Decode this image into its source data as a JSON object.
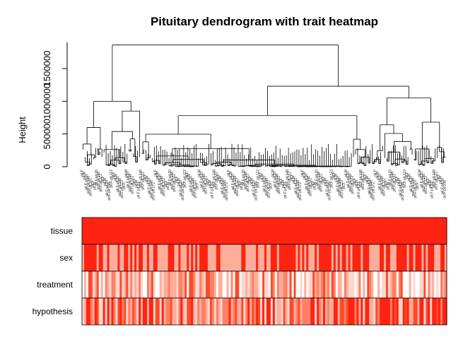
{
  "chart_data": {
    "type": "dendrogram-heatmap",
    "title": "Pituitary dendrogram with trait heatmap",
    "ylabel": "Height",
    "yticks": [
      "0",
      "500000",
      "1000000",
      "1500000"
    ],
    "ylim": [
      0,
      1900000
    ],
    "trait_rows": [
      "tissue",
      "sex",
      "treatment",
      "hypothesis"
    ],
    "heat_colors": [
      "#ffffff",
      "#ffd6cc",
      "#ffad9b",
      "#ff8064",
      "#ff4a2a",
      "#ff2412"
    ],
    "color_scale": "white-to-red",
    "leaf_count": 174,
    "top_merges": [
      {
        "clusters": "left-group + right-group",
        "height": 1860000
      },
      {
        "clusters": "middle + far-right",
        "height": 1230000
      },
      {
        "clusters": "left cluster",
        "height": 1000000
      },
      {
        "clusters": "center + right",
        "height": 1050000
      }
    ],
    "leaf_label_prefixes": [
      "pit.F",
      "pit.M",
      "pit.F.pit.20",
      "pit.F.pit.148",
      "pit.F.pit.172"
    ]
  }
}
